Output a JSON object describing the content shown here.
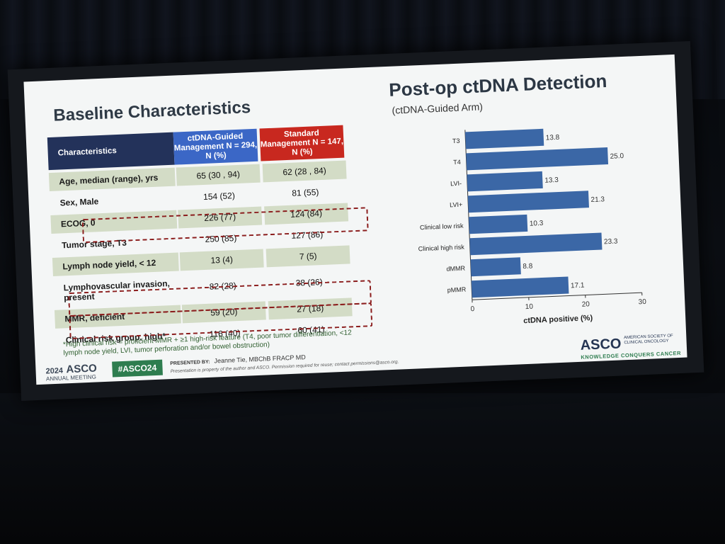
{
  "left_title": "Baseline Characteristics",
  "right_title": "Post-op ctDNA Detection",
  "right_subtitle": "(ctDNA-Guided Arm)",
  "table": {
    "headers": [
      "Characteristics",
      "ctDNA-Guided Management N = 294, N (%)",
      "Standard Management N = 147, N (%)"
    ],
    "rows": [
      {
        "label": "Age, median (range), yrs",
        "guided": "65 (30 , 94)",
        "standard": "62 (28 , 84)"
      },
      {
        "label": "Sex, Male",
        "guided": "154 (52)",
        "standard": "81 (55)"
      },
      {
        "label": "ECOG, 0",
        "guided": "226 (77)",
        "standard": "124 (84)"
      },
      {
        "label": "Tumor stage, T3",
        "guided": "250 (85)",
        "standard": "127 (86)"
      },
      {
        "label": "Lymph node yield, < 12",
        "guided": "13 (4)",
        "standard": "7 (5)"
      },
      {
        "label": "Lymphovascular invasion, present",
        "guided": "82 (28)",
        "standard": "38 (26)"
      },
      {
        "label": "MMR, deficient",
        "guided": "59 (20)",
        "standard": "27 (18)"
      },
      {
        "label": "Clinical risk group, high*",
        "guided": "116 (40)",
        "standard": "60 (41)"
      }
    ]
  },
  "footnote": "*High clinical risk = proficient MMR + ≥1 high-risk feature (T4, poor tumor differentiation, <12 lymph node yield, LVI, tumor perforation and/or bowel obstruction)",
  "chart_data": {
    "type": "bar",
    "orientation": "horizontal",
    "categories": [
      "T3",
      "T4",
      "LVI-",
      "LVI+",
      "Clinical low risk",
      "Clinical high risk",
      "dMMR",
      "pMMR"
    ],
    "values": [
      13.8,
      25.0,
      13.3,
      21.3,
      10.3,
      23.3,
      8.8,
      17.1
    ],
    "value_labels": [
      "13.8",
      "25.0",
      "13.3",
      "21.3",
      "10.3",
      "23.3",
      "8.8",
      "17.1"
    ],
    "xlabel": "ctDNA positive (%)",
    "xlim": [
      0,
      30
    ],
    "xticks": [
      "0",
      "10",
      "20",
      "30"
    ],
    "bar_color": "#3b67a6"
  },
  "footer": {
    "year": "2024",
    "asco": "ASCO",
    "meeting": "ANNUAL MEETING",
    "hashtag": "#ASCO24",
    "presented_by": "PRESENTED BY:",
    "presenter": "Jeanne Tie, MBChB FRACP MD",
    "disclaimer": "Presentation is property of the author and ASCO. Permission required for reuse; contact permissions@asco.org.",
    "logo_name": "ASCO",
    "logo_society": "AMERICAN SOCIETY OF CLINICAL ONCOLOGY",
    "logo_tagline": "KNOWLEDGE CONQUERS CANCER"
  }
}
